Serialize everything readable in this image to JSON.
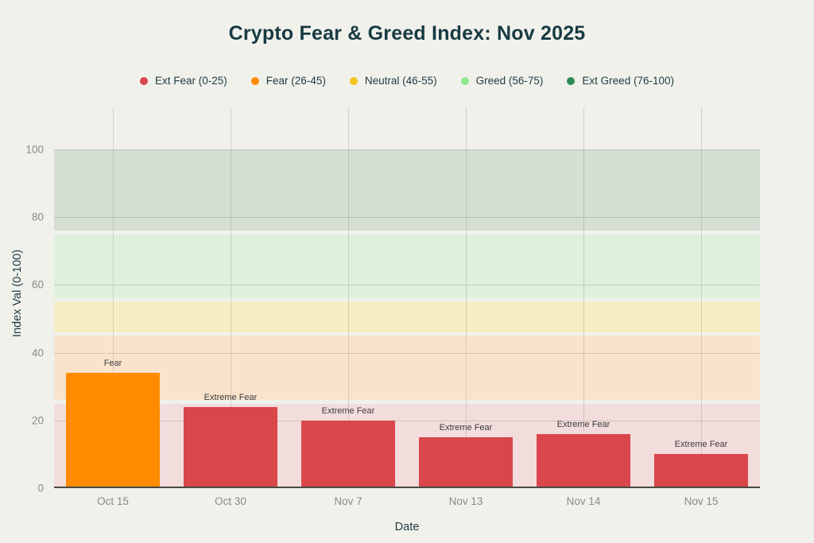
{
  "page": {
    "background_color": "#F1F1EB"
  },
  "chart_data": {
    "type": "bar",
    "title": "Crypto Fear & Greed Index: Nov 2025",
    "xlabel": "Date",
    "ylabel": "Index Val (0-100)",
    "ylim": [
      0,
      100
    ],
    "yticks": [
      0,
      20,
      40,
      60,
      80,
      100
    ],
    "categories": [
      "Oct 15",
      "Oct 30",
      "Nov 7",
      "Nov 13",
      "Nov 14",
      "Nov 15"
    ],
    "values": [
      34,
      24,
      20,
      15,
      16,
      10
    ],
    "bar_labels": [
      "Fear",
      "Extreme Fear",
      "Extreme Fear",
      "Extreme Fear",
      "Extreme Fear",
      "Extreme Fear"
    ],
    "bar_colors": [
      "#FF8C00",
      "#D9464B",
      "#D9464B",
      "#D9464B",
      "#D9464B",
      "#D9464B"
    ],
    "grid": true,
    "legend_position": "top",
    "legend": [
      {
        "label": "Ext Fear (0-25)",
        "color": "#D9464B"
      },
      {
        "label": "Fear (26-45)",
        "color": "#FF8C00"
      },
      {
        "label": "Neutral (46-55)",
        "color": "#F4C51C"
      },
      {
        "label": "Greed (56-75)",
        "color": "#90E890"
      },
      {
        "label": "Ext Greed (76-100)",
        "color": "#2E8B57"
      }
    ],
    "zone_bands": [
      {
        "label": "extreme-fear-zone",
        "range": [
          0,
          25
        ],
        "color": "#F3DDDC"
      },
      {
        "label": "fear-zone",
        "range": [
          26,
          45
        ],
        "color": "#F8E4CD"
      },
      {
        "label": "neutral-zone",
        "range": [
          46,
          55
        ],
        "color": "#F4EEC2"
      },
      {
        "label": "greed-zone",
        "range": [
          56,
          75
        ],
        "color": "#DFF0DC"
      },
      {
        "label": "extreme-greed-zone",
        "range": [
          76,
          100
        ],
        "color": "#D5DFD4"
      }
    ]
  }
}
